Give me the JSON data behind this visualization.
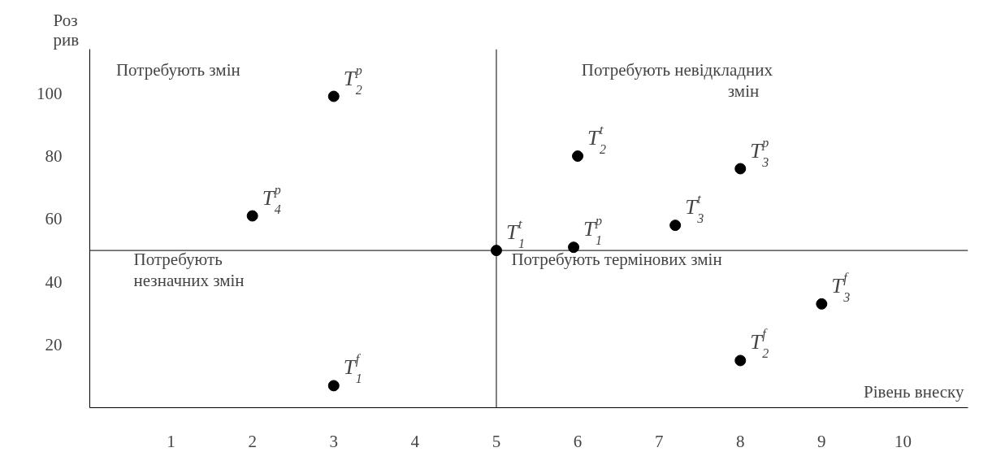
{
  "chart_data": {
    "type": "scatter",
    "xlabel": "Рівень внеску",
    "ylabel": "Роз рив",
    "x": [
      3,
      2,
      6,
      8,
      7.2,
      5,
      5.95,
      9,
      8,
      3
    ],
    "series": [
      {
        "color": "#000000",
        "values": [
          99,
          61,
          80,
          76,
          58,
          50,
          51,
          33,
          15,
          7
        ]
      }
    ],
    "marker": "circle",
    "xlim": [
      0,
      10.8
    ],
    "ylim": [
      0,
      114
    ],
    "xticks": [
      1,
      2,
      3,
      4,
      5,
      6,
      7,
      8,
      9,
      10
    ],
    "yticks": [
      20,
      40,
      60,
      80,
      100
    ],
    "grid": false,
    "ref_lines": [
      {
        "axis": "x",
        "value": 5,
        "color": "#000000"
      },
      {
        "axis": "y",
        "value": 50,
        "color": "#000000"
      }
    ],
    "annotations": [
      "Потребують змін",
      "Потребують невідкладних\nзмін",
      "Потребують\nнезначних змін",
      "Потребують термінових змін",
      {
        "text": "T$_{2}$$^{p}$",
        "x": 3,
        "y": 99
      },
      {
        "text": "T$_{4}$$^{p}$",
        "x": 2,
        "y": 61
      },
      {
        "text": "T$_{2}$$^{t}$",
        "x": 6,
        "y": 80
      },
      {
        "text": "T$_{3}$$^{p}$",
        "x": 8,
        "y": 76
      },
      {
        "text": "T$_{3}$$^{t}$",
        "x": 7.2,
        "y": 58
      },
      {
        "text": "T$_{1}$$^{t}$",
        "x": 5,
        "y": 50
      },
      {
        "text": "T$_{1}$$^{p}$",
        "x": 5.95,
        "y": 51
      },
      {
        "text": "T$_{3}$$^{f}$",
        "x": 9,
        "y": 33
      },
      {
        "text": "T$_{2}$$^{f}$",
        "x": 8,
        "y": 15
      },
      {
        "text": "T$_{1}$$^{f}$",
        "x": 3,
        "y": 7
      }
    ]
  }
}
